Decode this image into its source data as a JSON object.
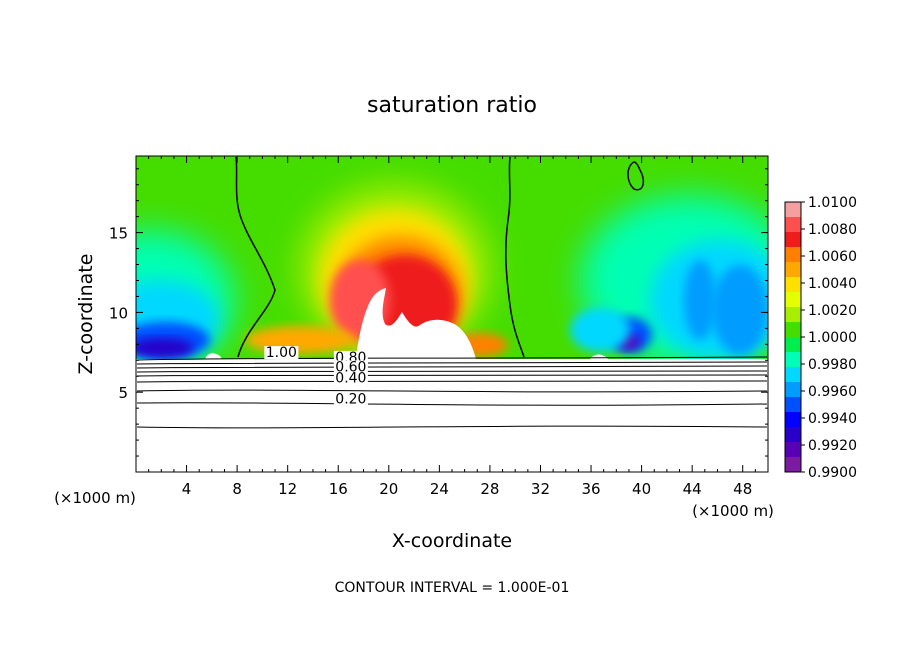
{
  "chart_data": {
    "type": "heatmap",
    "title": "saturation ratio",
    "xlabel": "X-coordinate",
    "ylabel": "Z-coordinate",
    "x_units": "(×1000 m)",
    "y_units": "(×1000 m)",
    "xlim": [
      0,
      50
    ],
    "ylim": [
      0,
      19.8
    ],
    "x_ticks": [
      4,
      8,
      12,
      16,
      20,
      24,
      28,
      32,
      36,
      40,
      44,
      48
    ],
    "y_ticks": [
      5,
      10,
      15
    ],
    "footer": "CONTOUR INTERVAL = 1.000E-01",
    "colorbar": {
      "min": 0.99,
      "max": 1.01,
      "labels": [
        "1.0100",
        "1.0080",
        "1.0060",
        "1.0040",
        "1.0020",
        "1.0000",
        "0.9980",
        "0.9960",
        "0.9940",
        "0.9920",
        "0.9900"
      ],
      "colors": [
        "#f4a0a0",
        "#ff5050",
        "#ee1c1c",
        "#ff8000",
        "#ffa800",
        "#ffe000",
        "#e6ff00",
        "#a8ee00",
        "#45dd00",
        "#00ee4c",
        "#00ffb4",
        "#00d8ff",
        "#009cff",
        "#0050ff",
        "#0000ff",
        "#2800c8",
        "#5a00b4",
        "#7c1aa0"
      ]
    },
    "contour_labels": [
      {
        "text": "1.00",
        "x": 11.5,
        "y": 7.2
      },
      {
        "text": "0.80",
        "x": 17.0,
        "y": 6.9
      },
      {
        "text": "0.60",
        "x": 17.0,
        "y": 6.3
      },
      {
        "text": "0.40",
        "x": 17.0,
        "y": 5.6
      },
      {
        "text": "0.20",
        "x": 17.0,
        "y": 4.3
      }
    ]
  }
}
